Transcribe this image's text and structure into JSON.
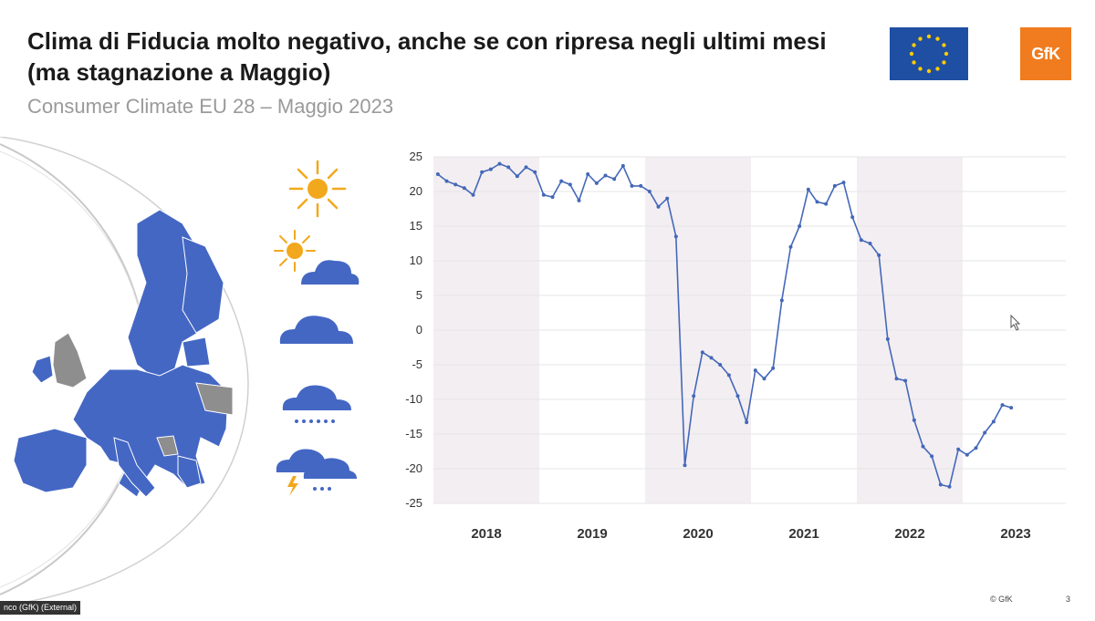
{
  "header": {
    "title": "Clima di Fiducia molto negativo, anche se con ripresa negli ultimi mesi (ma stagnazione a Maggio)",
    "subtitle": "Consumer Climate EU 28 – Maggio 2023"
  },
  "logos": {
    "gfk": "GfK",
    "gfk_color": "#f07c1f",
    "eu_blue": "#1f4fa3",
    "eu_star": "#ffcc00"
  },
  "weather_icons": [
    "sun-icon",
    "sun-behind-cloud-icon",
    "cloud-icon",
    "cloud-snow-icon",
    "storm-icon"
  ],
  "footer": {
    "left_label": "nco (GfK) (External)",
    "copyright": "© GfK",
    "page": "3"
  },
  "colors": {
    "line": "#4468b8",
    "shade": "#f3eef2",
    "grid": "#e6e6e6",
    "map_fill": "#4467c4",
    "map_grey": "#8e8e8e"
  },
  "chart_data": {
    "type": "line",
    "title": "",
    "xlabel": "",
    "ylabel": "",
    "ylim": [
      -25,
      25
    ],
    "yticks": [
      25,
      20,
      15,
      10,
      5,
      0,
      -5,
      -10,
      -15,
      -20,
      -25
    ],
    "years": [
      "2018",
      "2019",
      "2020",
      "2021",
      "2022",
      "2023"
    ],
    "shaded_years": [
      "2018",
      "2020",
      "2022"
    ],
    "grid": true,
    "series": [
      {
        "values": [
          22.5,
          21.5,
          21.0,
          20.5,
          19.5,
          22.8,
          23.2,
          24.0,
          23.5,
          22.2,
          23.5,
          22.8,
          19.5,
          19.2,
          21.5,
          21.0,
          18.7,
          22.5,
          21.2,
          22.3,
          21.8,
          23.7,
          20.8,
          20.8,
          20.0,
          17.8,
          19.0,
          13.5,
          -19.5,
          -9.5,
          -3.2,
          -4.0,
          -5.0,
          -6.5,
          -9.5,
          -13.3,
          -5.8,
          -7.0,
          -5.5,
          4.3,
          12.0,
          15.0,
          20.3,
          18.5,
          18.2,
          20.8,
          21.3,
          16.3,
          13.0,
          12.5,
          10.8,
          -1.3,
          -7.0,
          -7.3,
          -13.0,
          -16.8,
          -18.2,
          -22.3,
          -22.6,
          -17.2,
          -18.0,
          -17.0,
          -14.8,
          -13.2,
          -10.8,
          -11.2
        ]
      }
    ]
  }
}
